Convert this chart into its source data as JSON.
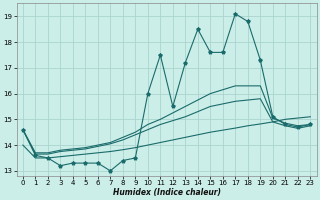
{
  "xlabel": "Humidex (Indice chaleur)",
  "bg_color": "#cceee8",
  "grid_color": "#aad4ce",
  "line_color": "#1a6b6b",
  "x_data": [
    0,
    1,
    2,
    3,
    4,
    5,
    6,
    7,
    8,
    9,
    10,
    11,
    12,
    13,
    14,
    15,
    16,
    17,
    18,
    19,
    20,
    21,
    22,
    23
  ],
  "y_main": [
    14.6,
    13.6,
    13.5,
    13.2,
    13.3,
    13.3,
    13.3,
    13.0,
    13.4,
    13.5,
    16.0,
    17.5,
    15.5,
    17.2,
    18.5,
    17.6,
    17.6,
    19.1,
    18.8,
    17.3,
    15.1,
    14.8,
    14.7,
    14.8
  ],
  "y_upper": [
    14.6,
    13.7,
    13.7,
    13.8,
    13.85,
    13.9,
    14.0,
    14.1,
    14.3,
    14.5,
    14.8,
    15.0,
    15.25,
    15.5,
    15.75,
    16.0,
    16.15,
    16.3,
    16.3,
    16.3,
    15.05,
    14.85,
    14.75,
    14.8
  ],
  "y_mid": [
    14.6,
    13.65,
    13.65,
    13.75,
    13.8,
    13.85,
    13.95,
    14.05,
    14.2,
    14.4,
    14.6,
    14.8,
    14.95,
    15.1,
    15.3,
    15.5,
    15.6,
    15.7,
    15.75,
    15.8,
    14.9,
    14.75,
    14.65,
    14.75
  ],
  "y_lower": [
    14.0,
    13.5,
    13.5,
    13.55,
    13.6,
    13.65,
    13.7,
    13.75,
    13.82,
    13.9,
    14.0,
    14.1,
    14.2,
    14.3,
    14.4,
    14.5,
    14.58,
    14.66,
    14.75,
    14.82,
    14.9,
    15.0,
    15.05,
    15.1
  ],
  "ylim": [
    12.8,
    19.5
  ],
  "yticks": [
    13,
    14,
    15,
    16,
    17,
    18,
    19
  ],
  "xlim": [
    -0.5,
    23.5
  ],
  "xticks": [
    0,
    1,
    2,
    3,
    4,
    5,
    6,
    7,
    8,
    9,
    10,
    11,
    12,
    13,
    14,
    15,
    16,
    17,
    18,
    19,
    20,
    21,
    22,
    23
  ]
}
